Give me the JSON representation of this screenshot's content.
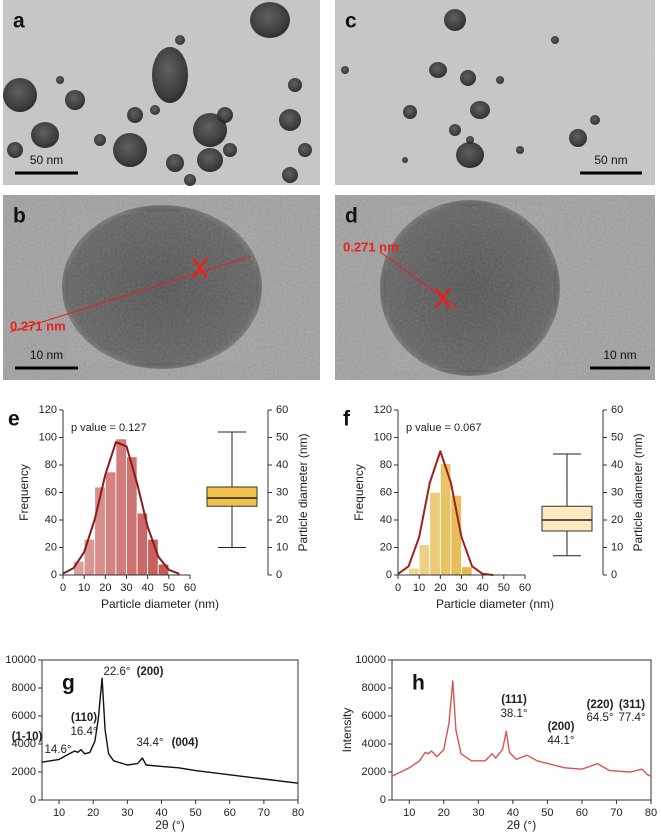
{
  "images": [
    {
      "panel_label": "a",
      "scale_bar": "50 nm"
    },
    {
      "panel_label": "b",
      "scale_bar": "10 nm",
      "spacing": "0.271 nm"
    },
    {
      "panel_label": "c",
      "scale_bar": "50 nm"
    },
    {
      "panel_label": "d",
      "scale_bar": "10 nm",
      "spacing": "0.271 nm"
    }
  ],
  "chart_data": [
    {
      "type": "histogram",
      "panel_label": "e",
      "annotation": "p value = 0.127",
      "xlabel": "Particle diameter (nm)",
      "ylabel": "Frequency",
      "y2label": "Particle diameter (nm)",
      "bins": [
        5,
        10,
        15,
        20,
        25,
        30,
        35,
        40,
        45,
        50
      ],
      "values": [
        10,
        26,
        64,
        75,
        99,
        86,
        45,
        26,
        8
      ],
      "color": "#c0504d",
      "fit_color": "#8b1a1a",
      "fit_x": [
        0,
        5,
        10,
        15,
        20,
        25,
        30,
        35,
        40,
        45,
        50,
        55
      ],
      "fit_values": [
        1.1,
        5,
        16.7,
        40.5,
        73,
        96.6,
        93.6,
        66.7,
        35,
        13.4,
        3.8,
        0.8
      ],
      "box": {
        "whisker_low": 10,
        "q1": 25,
        "median": 28,
        "q3": 32,
        "whisker_high": 52
      },
      "box_color": "#f2c14e",
      "xlim": [
        0,
        60
      ],
      "xticks": [
        0,
        10,
        20,
        30,
        40,
        50,
        60
      ],
      "ylim": [
        0,
        120
      ],
      "yticks": [
        0,
        20,
        40,
        60,
        80,
        100,
        120
      ],
      "y2lim": [
        0,
        60
      ],
      "y2ticks": [
        0,
        10,
        20,
        30,
        40,
        50,
        60
      ]
    },
    {
      "type": "histogram",
      "panel_label": "f",
      "annotation": "p value = 0.067",
      "xlabel": "Particle diameter (nm)",
      "ylabel": "Frequency",
      "y2label": "Particle diameter (nm)",
      "bins": [
        5,
        10,
        15,
        20,
        25,
        30,
        35
      ],
      "values": [
        5,
        22,
        60,
        81,
        58,
        6
      ],
      "color": "#e2b33c",
      "fit_color": "#a0201a",
      "fit_x": [
        0,
        5,
        10,
        15,
        20,
        25,
        30,
        35,
        40,
        45
      ],
      "fit_values": [
        0.8,
        6.3,
        27.6,
        67,
        90,
        67,
        27.6,
        6.3,
        0.8,
        0
      ],
      "box": {
        "whisker_low": 7,
        "q1": 16,
        "median": 20,
        "q3": 25,
        "whisker_high": 44
      },
      "box_color": "#fde9c0",
      "xlim": [
        0,
        60
      ],
      "xticks": [
        0,
        10,
        20,
        30,
        40,
        50,
        60
      ],
      "ylim": [
        0,
        120
      ],
      "yticks": [
        0,
        20,
        40,
        60,
        80,
        100,
        120
      ],
      "y2lim": [
        0,
        60
      ],
      "y2ticks": [
        0,
        10,
        20,
        30,
        40,
        50,
        60
      ]
    },
    {
      "type": "line",
      "panel_label": "g",
      "xlabel": "2θ (°)",
      "color": "#111111",
      "x": [
        5,
        10,
        13,
        14.6,
        15.5,
        16.4,
        17.5,
        19,
        20.5,
        21.5,
        22.6,
        23.5,
        24.5,
        26,
        30,
        33,
        34.4,
        35.5,
        40,
        45,
        50,
        60,
        70,
        80
      ],
      "values": [
        2700,
        2900,
        3300,
        3500,
        3400,
        3600,
        3300,
        3400,
        4200,
        5800,
        8700,
        5000,
        3300,
        2800,
        2500,
        2600,
        3000,
        2500,
        2400,
        2300,
        2100,
        1800,
        1500,
        1200
      ],
      "annotations": [
        {
          "text": "(1-10)",
          "color": "#3a7ca5"
        },
        {
          "text": "14.6°",
          "color": "#111111"
        },
        {
          "text": "(110)",
          "color": "#3a7ca5"
        },
        {
          "text": "16.4°",
          "color": "#111111"
        },
        {
          "text": "22.6°",
          "color": "#111111"
        },
        {
          "text": "(200)",
          "color": "#3a7ca5"
        },
        {
          "text": "34.4°",
          "color": "#111111"
        },
        {
          "text": "(004)",
          "color": "#3a7ca5"
        }
      ],
      "xlim": [
        5,
        80
      ],
      "xticks": [
        10,
        20,
        30,
        40,
        50,
        60,
        70,
        80
      ],
      "ylim": [
        0,
        10000
      ],
      "yticks": [
        0,
        2000,
        4000,
        6000,
        8000,
        10000
      ]
    },
    {
      "type": "line",
      "panel_label": "h",
      "xlabel": "2θ (°)",
      "ylabel": "Intensity",
      "color": "#d9534f",
      "x": [
        5,
        10,
        13,
        14.6,
        15.5,
        16.4,
        18,
        20,
        21.5,
        22.6,
        23.5,
        25,
        28,
        32,
        34,
        35,
        37,
        38.1,
        39,
        41,
        44.1,
        47,
        55,
        60,
        64.5,
        68,
        74,
        77.4,
        79,
        80
      ],
      "values": [
        1700,
        2300,
        2800,
        3400,
        3300,
        3500,
        3100,
        3600,
        5500,
        8500,
        5000,
        3300,
        2800,
        2800,
        3300,
        3000,
        3600,
        4900,
        3400,
        2900,
        3200,
        2800,
        2300,
        2200,
        2600,
        2100,
        2000,
        2200,
        1800,
        1700
      ],
      "annotations": [
        {
          "text": "(111)",
          "color": "#c0561b"
        },
        {
          "text": "38.1°",
          "color": "#111111"
        },
        {
          "text": "(200)",
          "color": "#c0561b"
        },
        {
          "text": "44.1°",
          "color": "#111111"
        },
        {
          "text": "(220)",
          "color": "#c0561b"
        },
        {
          "text": "64.5°",
          "color": "#111111"
        },
        {
          "text": "(311)",
          "color": "#c0561b"
        },
        {
          "text": "77.4°",
          "color": "#111111"
        }
      ],
      "xlim": [
        5,
        80
      ],
      "xticks": [
        10,
        20,
        30,
        40,
        50,
        60,
        70,
        80
      ],
      "ylim": [
        0,
        10000
      ],
      "yticks": [
        0,
        2000,
        4000,
        6000,
        8000,
        10000
      ]
    }
  ]
}
